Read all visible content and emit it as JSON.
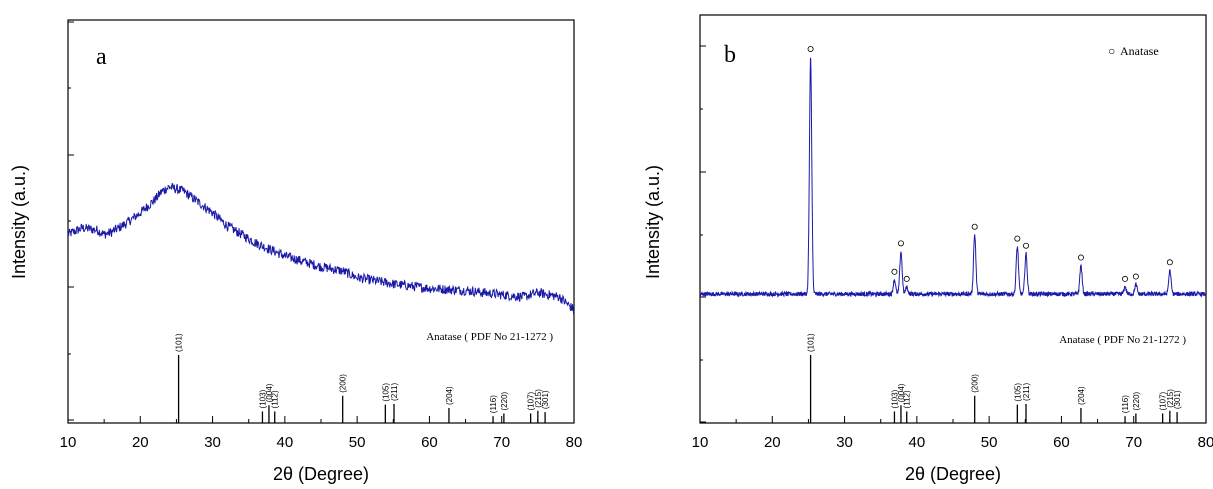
{
  "chart_data": [
    {
      "panel": "a",
      "type": "line",
      "xlabel": "2θ (Degree)",
      "ylabel": "Intensity (a.u.)",
      "xlim": [
        10,
        80
      ],
      "xticks": [
        "10",
        "20",
        "30",
        "40",
        "50",
        "60",
        "70",
        "80"
      ],
      "trace_profile": {
        "x": [
          10,
          12,
          14,
          15,
          16,
          18,
          20,
          22,
          23,
          24,
          25,
          26,
          28,
          30,
          32,
          34,
          36,
          38,
          40,
          42,
          45,
          48,
          50,
          55,
          60,
          65,
          70,
          73,
          75,
          78,
          80
        ],
        "y": [
          0.42,
          0.45,
          0.44,
          0.42,
          0.43,
          0.47,
          0.52,
          0.58,
          0.62,
          0.64,
          0.63,
          0.62,
          0.57,
          0.52,
          0.46,
          0.42,
          0.38,
          0.35,
          0.32,
          0.3,
          0.27,
          0.25,
          0.22,
          0.19,
          0.17,
          0.16,
          0.14,
          0.13,
          0.15,
          0.13,
          0.07
        ]
      },
      "reference": {
        "title": "Anatase ( PDF No 21-1272 )",
        "peaks": [
          {
            "x": 25.3,
            "h": 1.0,
            "hkl": "(101)"
          },
          {
            "x": 36.9,
            "h": 0.17,
            "hkl": "(103)"
          },
          {
            "x": 37.8,
            "h": 0.26,
            "hkl": "(004)"
          },
          {
            "x": 38.6,
            "h": 0.17,
            "hkl": "(112)"
          },
          {
            "x": 48.0,
            "h": 0.4,
            "hkl": "(200)"
          },
          {
            "x": 53.9,
            "h": 0.27,
            "hkl": "(105)"
          },
          {
            "x": 55.1,
            "h": 0.28,
            "hkl": "(211)"
          },
          {
            "x": 62.7,
            "h": 0.22,
            "hkl": "(204)"
          },
          {
            "x": 68.8,
            "h": 0.1,
            "hkl": "(116)"
          },
          {
            "x": 70.3,
            "h": 0.14,
            "hkl": "(220)"
          },
          {
            "x": 74.0,
            "h": 0.14,
            "hkl": "(107)"
          },
          {
            "x": 75.0,
            "h": 0.18,
            "hkl": "(215)"
          },
          {
            "x": 76.0,
            "h": 0.16,
            "hkl": "(301)"
          }
        ]
      }
    },
    {
      "panel": "b",
      "type": "line",
      "xlabel": "2θ (Degree)",
      "ylabel": "Intensity (a.u.)",
      "xlim": [
        10,
        80
      ],
      "xticks": [
        "10",
        "20",
        "30",
        "40",
        "50",
        "60",
        "70",
        "80"
      ],
      "legend": {
        "symbol": "○",
        "label": "Anatase",
        "position": "top-right"
      },
      "trace_peaks": [
        {
          "x": 25.3,
          "h": 1.0,
          "marked": true
        },
        {
          "x": 36.9,
          "h": 0.06,
          "marked": true
        },
        {
          "x": 37.8,
          "h": 0.18,
          "marked": true
        },
        {
          "x": 38.6,
          "h": 0.03,
          "marked": true
        },
        {
          "x": 48.0,
          "h": 0.25,
          "marked": true
        },
        {
          "x": 53.9,
          "h": 0.2,
          "marked": true
        },
        {
          "x": 55.1,
          "h": 0.17,
          "marked": true
        },
        {
          "x": 62.7,
          "h": 0.12,
          "marked": true
        },
        {
          "x": 68.8,
          "h": 0.03,
          "marked": true
        },
        {
          "x": 70.3,
          "h": 0.04,
          "marked": true
        },
        {
          "x": 75.0,
          "h": 0.1,
          "marked": true
        }
      ],
      "reference": {
        "title": "Anatase ( PDF No 21-1272 )",
        "peaks": [
          {
            "x": 25.3,
            "h": 1.0,
            "hkl": "(101)"
          },
          {
            "x": 36.9,
            "h": 0.17,
            "hkl": "(103)"
          },
          {
            "x": 37.8,
            "h": 0.26,
            "hkl": "(004)"
          },
          {
            "x": 38.6,
            "h": 0.17,
            "hkl": "(112)"
          },
          {
            "x": 48.0,
            "h": 0.4,
            "hkl": "(200)"
          },
          {
            "x": 53.9,
            "h": 0.27,
            "hkl": "(105)"
          },
          {
            "x": 55.1,
            "h": 0.28,
            "hkl": "(211)"
          },
          {
            "x": 62.7,
            "h": 0.22,
            "hkl": "(204)"
          },
          {
            "x": 68.8,
            "h": 0.1,
            "hkl": "(116)"
          },
          {
            "x": 70.3,
            "h": 0.14,
            "hkl": "(220)"
          },
          {
            "x": 74.0,
            "h": 0.14,
            "hkl": "(107)"
          },
          {
            "x": 75.0,
            "h": 0.18,
            "hkl": "(215)"
          },
          {
            "x": 76.0,
            "h": 0.16,
            "hkl": "(301)"
          }
        ]
      }
    }
  ],
  "colors": {
    "trace": "#1a1aa6",
    "axis": "#000000"
  }
}
